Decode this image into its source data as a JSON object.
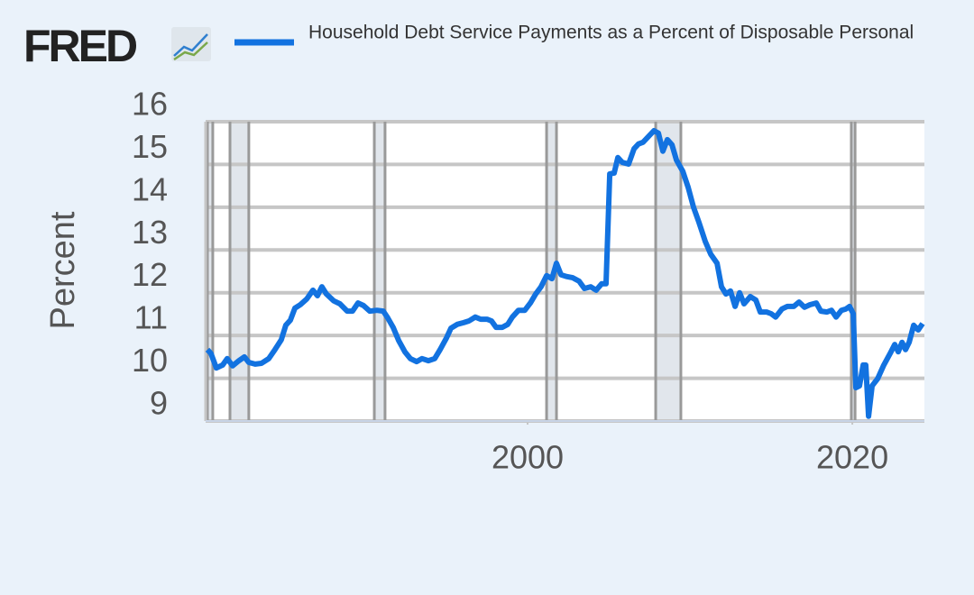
{
  "logo": "FRED",
  "chart_data": {
    "type": "line",
    "title": "Household Debt Service Payments as a Percent of Disposable Personal",
    "y_label": "Percent",
    "xlim": [
      1980.17,
      2024.44
    ],
    "xticks": [
      2000,
      2020
    ],
    "ylim": [
      9,
      16
    ],
    "yticks": [
      9,
      10,
      11,
      12,
      13,
      14,
      15,
      16
    ],
    "grid": true,
    "recessions": [
      [
        1980.28,
        1980.61
      ],
      [
        1981.67,
        1982.83
      ],
      [
        1990.56,
        1991.22
      ],
      [
        2001.17,
        2001.78
      ],
      [
        2007.89,
        2009.44
      ],
      [
        2019.94,
        2020.17
      ]
    ],
    "x": [
      1980.28,
      1980.5,
      1980.83,
      1981.22,
      1981.5,
      1981.83,
      1982.22,
      1982.56,
      1982.83,
      1983.22,
      1983.61,
      1984.06,
      1984.44,
      1984.83,
      1985.11,
      1985.39,
      1985.67,
      1986.0,
      1986.39,
      1986.78,
      1987.06,
      1987.33,
      1987.61,
      1988.06,
      1988.44,
      1988.89,
      1989.22,
      1989.56,
      1989.89,
      1990.28,
      1990.72,
      1991.11,
      1991.39,
      1991.72,
      1992.06,
      1992.44,
      1992.78,
      1993.17,
      1993.5,
      1993.89,
      1994.28,
      1994.61,
      1995.0,
      1995.28,
      1995.67,
      1996.06,
      1996.39,
      1996.78,
      1997.11,
      1997.5,
      1997.78,
      1998.06,
      1998.44,
      1998.78,
      1999.06,
      1999.44,
      1999.83,
      2000.17,
      2000.5,
      2000.83,
      2001.17,
      2001.5,
      2001.78,
      2002.06,
      2002.39,
      2002.78,
      2003.17,
      2003.5,
      2003.89,
      2004.22,
      2004.56,
      2004.83,
      2005.06,
      2005.33,
      2005.56,
      2005.83,
      2006.22,
      2006.56,
      2006.83,
      2007.11,
      2007.44,
      2007.78,
      2008.06,
      2008.33,
      2008.61,
      2008.89,
      2009.17,
      2009.56,
      2009.89,
      2010.22,
      2010.56,
      2010.94,
      2011.28,
      2011.67,
      2011.94,
      2012.22,
      2012.5,
      2012.78,
      2013.06,
      2013.33,
      2013.72,
      2014.06,
      2014.33,
      2014.72,
      2015.0,
      2015.28,
      2015.67,
      2016.0,
      2016.39,
      2016.72,
      2017.06,
      2017.39,
      2017.78,
      2018.06,
      2018.44,
      2018.72,
      2019.0,
      2019.33,
      2019.61,
      2019.83,
      2020.06,
      2020.22,
      2020.44,
      2020.67,
      2020.83,
      2021.0,
      2021.22,
      2021.56,
      2021.94,
      2022.33,
      2022.61,
      2022.83,
      2023.06,
      2023.28,
      2023.5,
      2023.78,
      2024.06,
      2024.33
    ],
    "series": [
      {
        "name": "Household Debt Service Payments as a Percent of Disposable Personal",
        "color": "#1272e0",
        "values": [
          10.67,
          10.58,
          10.24,
          10.31,
          10.46,
          10.29,
          10.41,
          10.5,
          10.37,
          10.33,
          10.35,
          10.46,
          10.67,
          10.9,
          11.24,
          11.36,
          11.64,
          11.72,
          11.85,
          12.06,
          11.93,
          12.14,
          11.97,
          11.81,
          11.74,
          11.57,
          11.57,
          11.76,
          11.7,
          11.57,
          11.59,
          11.57,
          11.41,
          11.19,
          10.88,
          10.62,
          10.46,
          10.39,
          10.46,
          10.41,
          10.46,
          10.67,
          10.94,
          11.17,
          11.26,
          11.3,
          11.34,
          11.43,
          11.38,
          11.38,
          11.34,
          11.19,
          11.19,
          11.26,
          11.43,
          11.59,
          11.59,
          11.76,
          11.97,
          12.14,
          12.4,
          12.33,
          12.69,
          12.42,
          12.38,
          12.35,
          12.27,
          12.1,
          12.14,
          12.06,
          12.21,
          12.21,
          14.78,
          14.8,
          15.16,
          15.05,
          15.01,
          15.37,
          15.48,
          15.52,
          15.65,
          15.79,
          15.73,
          15.31,
          15.58,
          15.46,
          15.1,
          14.84,
          14.46,
          14.0,
          13.64,
          13.2,
          12.9,
          12.69,
          12.14,
          11.97,
          12.04,
          11.68,
          12.0,
          11.74,
          11.91,
          11.83,
          11.55,
          11.55,
          11.51,
          11.43,
          11.62,
          11.68,
          11.68,
          11.78,
          11.66,
          11.72,
          11.76,
          11.57,
          11.55,
          11.59,
          11.43,
          11.59,
          11.62,
          11.68,
          11.51,
          9.78,
          9.82,
          10.31,
          10.31,
          9.11,
          9.82,
          9.99,
          10.31,
          10.58,
          10.79,
          10.62,
          10.84,
          10.67,
          10.84,
          11.24,
          11.13,
          11.28
        ]
      }
    ]
  }
}
